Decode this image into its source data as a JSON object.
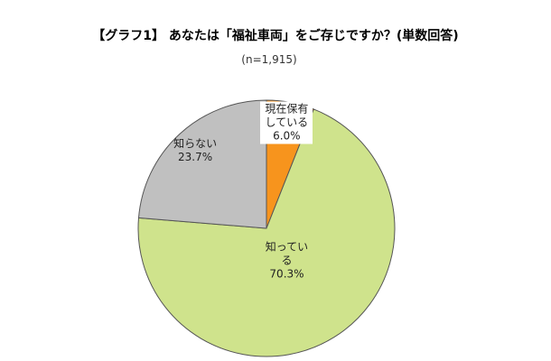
{
  "chart_data": {
    "type": "pie",
    "title": "【グラフ1】 あなたは「福祉車両」をご存じですか？(単数回答)",
    "subtitle": "(n=1,915)",
    "categories": [
      "現在保有している",
      "知っている",
      "知らない"
    ],
    "values": [
      6.0,
      70.3,
      23.7
    ],
    "value_labels": [
      "6.0%",
      "70.3%",
      "23.7%"
    ],
    "colors": [
      "#f7941d",
      "#cfe38c",
      "#c0c0c0"
    ]
  }
}
